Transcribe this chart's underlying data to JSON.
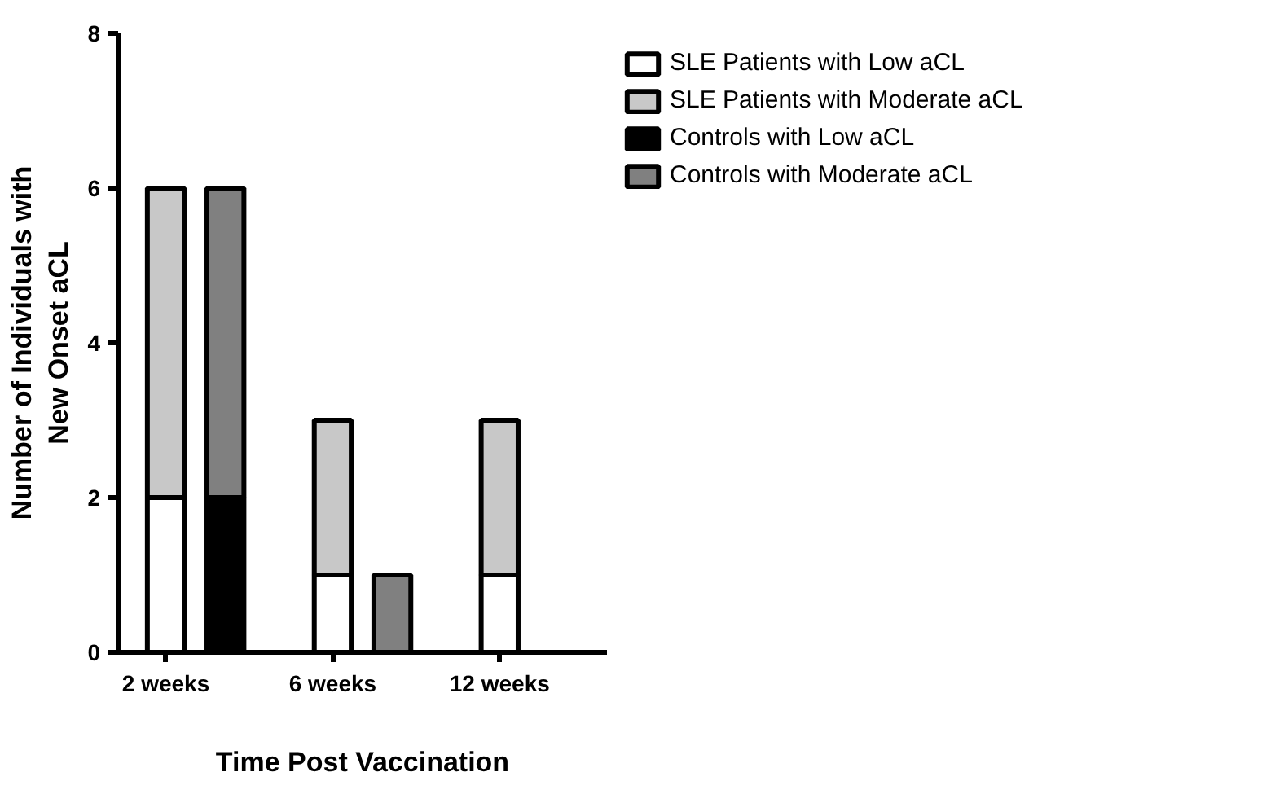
{
  "chart_data": {
    "type": "bar",
    "stacked": true,
    "xlabel": "Time Post Vaccination",
    "ylabel": "Number of Individuals with New Onset aCL",
    "categories": [
      "2 weeks",
      null,
      "6 weeks",
      null,
      "12 weeks",
      null
    ],
    "series": [
      {
        "name": "SLE Patients with Low aCL",
        "color": "#ffffff",
        "values": [
          2,
          null,
          1,
          null,
          1,
          null
        ]
      },
      {
        "name": "SLE Patients with Moderate aCL",
        "color": "#c8c8c8",
        "values": [
          4,
          null,
          2,
          null,
          2,
          null
        ]
      },
      {
        "name": "Controls with Low aCL",
        "color": "#000000",
        "values": [
          null,
          2,
          null,
          0,
          null,
          0
        ]
      },
      {
        "name": "Controls with Moderate aCL",
        "color": "#808080",
        "values": [
          null,
          4,
          null,
          1,
          null,
          0
        ]
      }
    ],
    "ylim": [
      0,
      8
    ],
    "yticks": [
      0,
      2,
      4,
      6,
      8
    ],
    "legend": "top right"
  }
}
